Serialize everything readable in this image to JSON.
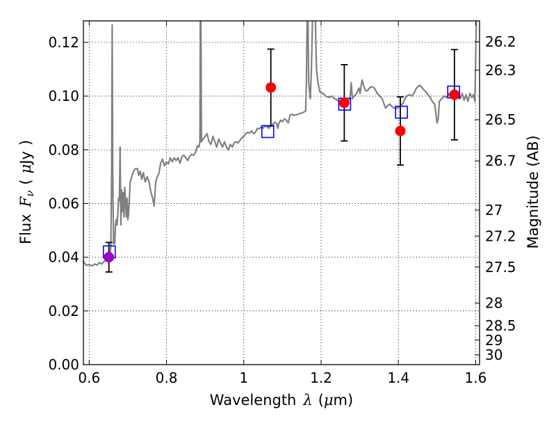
{
  "chart_data": {
    "type": "scatter",
    "xlabel": {
      "prefix": "Wavelength",
      "symbol": "λ",
      "unit_open": "(",
      "unit_mu": "μ",
      "unit_rest": "m)"
    },
    "ylabel": {
      "prefix": "Flux",
      "symbol": "F",
      "subscript": "ν",
      "unit_open": "(",
      "unit_mu": "μ",
      "unit_rest": "Jy",
      "unit_close": ")"
    },
    "y2label": "Magnitude (AB)",
    "xlim": [
      0.585,
      1.61
    ],
    "ylim": [
      0.0,
      0.128
    ],
    "grid": true,
    "x_ticks": [
      {
        "value": 0.6,
        "label": "0.6"
      },
      {
        "value": 0.8,
        "label": "0.8"
      },
      {
        "value": 1.0,
        "label": "1"
      },
      {
        "value": 1.2,
        "label": "1.2"
      },
      {
        "value": 1.4,
        "label": "1.4"
      },
      {
        "value": 1.6,
        "label": "1.6"
      }
    ],
    "y_ticks": [
      {
        "value": 0.0,
        "label": "0.00"
      },
      {
        "value": 0.02,
        "label": "0.02"
      },
      {
        "value": 0.04,
        "label": "0.04"
      },
      {
        "value": 0.06,
        "label": "0.06"
      },
      {
        "value": 0.08,
        "label": "0.08"
      },
      {
        "value": 0.1,
        "label": "0.10"
      },
      {
        "value": 0.12,
        "label": "0.12"
      }
    ],
    "mag_ticks": [
      {
        "value": 26.2,
        "label": "26.2"
      },
      {
        "value": 26.3,
        "label": "26.3"
      },
      {
        "value": 26.5,
        "label": "26.5"
      },
      {
        "value": 26.7,
        "label": "26.7"
      },
      {
        "value": 27.0,
        "label": "27"
      },
      {
        "value": 27.2,
        "label": "27.2"
      },
      {
        "value": 27.5,
        "label": "27.5"
      },
      {
        "value": 28.0,
        "label": "28"
      },
      {
        "value": 28.5,
        "label": "28.5"
      },
      {
        "value": 29.0,
        "label": "29"
      },
      {
        "value": 30.0,
        "label": "30"
      }
    ],
    "series": [
      {
        "name": "model-spectrum",
        "kind": "line",
        "color": "#808080",
        "points": [
          [
            0.585,
            0.0385
          ],
          [
            0.592,
            0.037
          ],
          [
            0.6,
            0.0372
          ],
          [
            0.608,
            0.0368
          ],
          [
            0.615,
            0.0375
          ],
          [
            0.62,
            0.037
          ],
          [
            0.626,
            0.038
          ],
          [
            0.632,
            0.0375
          ],
          [
            0.638,
            0.0383
          ],
          [
            0.643,
            0.039
          ],
          [
            0.648,
            0.0395
          ],
          [
            0.652,
            0.04
          ],
          [
            0.654,
            0.0408
          ],
          [
            0.656,
            0.044
          ],
          [
            0.658,
            0.07
          ],
          [
            0.6595,
            0.1265
          ],
          [
            0.661,
            0.07
          ],
          [
            0.663,
            0.045
          ],
          [
            0.666,
            0.045
          ],
          [
            0.668,
            0.052
          ],
          [
            0.67,
            0.054
          ],
          [
            0.672,
            0.052
          ],
          [
            0.674,
            0.056
          ],
          [
            0.676,
            0.062
          ],
          [
            0.678,
            0.061
          ],
          [
            0.68,
            0.081
          ],
          [
            0.682,
            0.052
          ],
          [
            0.684,
            0.065
          ],
          [
            0.686,
            0.057
          ],
          [
            0.688,
            0.064
          ],
          [
            0.69,
            0.055
          ],
          [
            0.692,
            0.066
          ],
          [
            0.694,
            0.061
          ],
          [
            0.696,
            0.055
          ],
          [
            0.698,
            0.062
          ],
          [
            0.7,
            0.054
          ],
          [
            0.702,
            0.056
          ],
          [
            0.706,
            0.068
          ],
          [
            0.71,
            0.07
          ],
          [
            0.715,
            0.0722
          ],
          [
            0.72,
            0.073
          ],
          [
            0.725,
            0.0729
          ],
          [
            0.728,
            0.0705
          ],
          [
            0.732,
            0.072
          ],
          [
            0.736,
            0.069
          ],
          [
            0.74,
            0.0715
          ],
          [
            0.745,
            0.068
          ],
          [
            0.75,
            0.07
          ],
          [
            0.755,
            0.068
          ],
          [
            0.76,
            0.064
          ],
          [
            0.764,
            0.062
          ],
          [
            0.768,
            0.059
          ],
          [
            0.772,
            0.068
          ],
          [
            0.776,
            0.07
          ],
          [
            0.78,
            0.071
          ],
          [
            0.785,
            0.075
          ],
          [
            0.79,
            0.0765
          ],
          [
            0.795,
            0.074
          ],
          [
            0.8,
            0.0755
          ],
          [
            0.805,
            0.0748
          ],
          [
            0.81,
            0.077
          ],
          [
            0.815,
            0.0755
          ],
          [
            0.82,
            0.077
          ],
          [
            0.825,
            0.076
          ],
          [
            0.83,
            0.077
          ],
          [
            0.835,
            0.075
          ],
          [
            0.84,
            0.0775
          ],
          [
            0.845,
            0.078
          ],
          [
            0.85,
            0.077
          ],
          [
            0.855,
            0.076
          ],
          [
            0.86,
            0.0775
          ],
          [
            0.865,
            0.0783
          ],
          [
            0.87,
            0.078
          ],
          [
            0.875,
            0.079
          ],
          [
            0.88,
            0.0815
          ],
          [
            0.884,
            0.081
          ],
          [
            0.8865,
            0.083
          ],
          [
            0.8875,
            0.13
          ],
          [
            0.889,
            0.13
          ],
          [
            0.8905,
            0.083
          ],
          [
            0.895,
            0.084
          ],
          [
            0.9,
            0.085
          ],
          [
            0.905,
            0.086
          ],
          [
            0.91,
            0.083
          ],
          [
            0.915,
            0.082
          ],
          [
            0.92,
            0.085
          ],
          [
            0.925,
            0.083
          ],
          [
            0.93,
            0.081
          ],
          [
            0.935,
            0.084
          ],
          [
            0.94,
            0.0825
          ],
          [
            0.945,
            0.081
          ],
          [
            0.95,
            0.083
          ],
          [
            0.955,
            0.081
          ],
          [
            0.96,
            0.08
          ],
          [
            0.965,
            0.082
          ],
          [
            0.97,
            0.081
          ],
          [
            0.975,
            0.0825
          ],
          [
            0.98,
            0.083
          ],
          [
            0.985,
            0.0825
          ],
          [
            0.99,
            0.0835
          ],
          [
            0.995,
            0.0845
          ],
          [
            1.0,
            0.085
          ],
          [
            1.005,
            0.086
          ],
          [
            1.01,
            0.0865
          ],
          [
            1.015,
            0.0862
          ],
          [
            1.02,
            0.087
          ],
          [
            1.025,
            0.086
          ],
          [
            1.03,
            0.0865
          ],
          [
            1.035,
            0.088
          ],
          [
            1.04,
            0.0878
          ],
          [
            1.045,
            0.0885
          ],
          [
            1.05,
            0.088
          ],
          [
            1.055,
            0.089
          ],
          [
            1.06,
            0.0885
          ],
          [
            1.065,
            0.088
          ],
          [
            1.07,
            0.089
          ],
          [
            1.075,
            0.0895
          ],
          [
            1.08,
            0.0902
          ],
          [
            1.085,
            0.0898
          ],
          [
            1.088,
            0.088
          ],
          [
            1.09,
            0.0895
          ],
          [
            1.095,
            0.091
          ],
          [
            1.1,
            0.0905
          ],
          [
            1.105,
            0.0915
          ],
          [
            1.11,
            0.091
          ],
          [
            1.115,
            0.09
          ],
          [
            1.12,
            0.093
          ],
          [
            1.125,
            0.0932
          ],
          [
            1.13,
            0.0928
          ],
          [
            1.135,
            0.093
          ],
          [
            1.14,
            0.0932
          ],
          [
            1.145,
            0.0935
          ],
          [
            1.15,
            0.0937
          ],
          [
            1.155,
            0.094
          ],
          [
            1.16,
            0.0945
          ],
          [
            1.162,
            0.105
          ],
          [
            1.164,
            0.13
          ],
          [
            1.166,
            0.13
          ],
          [
            1.168,
            0.105
          ],
          [
            1.172,
            0.099
          ],
          [
            1.175,
            0.11
          ],
          [
            1.178,
            0.13
          ],
          [
            1.18,
            0.13
          ],
          [
            1.182,
            0.13
          ],
          [
            1.185,
            0.13
          ],
          [
            1.188,
            0.11
          ],
          [
            1.192,
            0.105
          ],
          [
            1.197,
            0.1015
          ],
          [
            1.205,
            0.101
          ],
          [
            1.212,
            0.1
          ],
          [
            1.22,
            0.0995
          ],
          [
            1.228,
            0.1
          ],
          [
            1.235,
            0.099
          ],
          [
            1.242,
            0.0985
          ],
          [
            1.248,
            0.098
          ],
          [
            1.255,
            0.0975
          ],
          [
            1.262,
            0.098
          ],
          [
            1.268,
            0.0985
          ],
          [
            1.272,
            0.0985
          ],
          [
            1.275,
            0.099
          ],
          [
            1.278,
            0.105
          ],
          [
            1.281,
            0.099
          ],
          [
            1.285,
            0.1
          ],
          [
            1.29,
            0.1005
          ],
          [
            1.295,
            0.102
          ],
          [
            1.298,
            0.103
          ],
          [
            1.301,
            0.101
          ],
          [
            1.306,
            0.106
          ],
          [
            1.31,
            0.104
          ],
          [
            1.315,
            0.102
          ],
          [
            1.32,
            0.102
          ],
          [
            1.325,
            0.103
          ],
          [
            1.33,
            0.1035
          ],
          [
            1.338,
            0.103
          ],
          [
            1.345,
            0.101
          ],
          [
            1.352,
            0.1
          ],
          [
            1.358,
            0.099
          ],
          [
            1.363,
            0.097
          ],
          [
            1.367,
            0.0955
          ],
          [
            1.372,
            0.0965
          ],
          [
            1.378,
            0.097
          ],
          [
            1.384,
            0.096
          ],
          [
            1.39,
            0.0955
          ],
          [
            1.396,
            0.0955
          ],
          [
            1.402,
            0.096
          ],
          [
            1.407,
            0.0965
          ],
          [
            1.412,
            0.0975
          ],
          [
            1.417,
            0.099
          ],
          [
            1.422,
            0.1
          ],
          [
            1.428,
            0.1005
          ],
          [
            1.434,
            0.1
          ],
          [
            1.44,
            0.101
          ],
          [
            1.445,
            0.1025
          ],
          [
            1.45,
            0.1035
          ],
          [
            1.456,
            0.104
          ],
          [
            1.462,
            0.103
          ],
          [
            1.468,
            0.102
          ],
          [
            1.474,
            0.101
          ],
          [
            1.48,
            0.1
          ],
          [
            1.486,
            0.0985
          ],
          [
            1.49,
            0.0975
          ],
          [
            1.494,
            0.097
          ],
          [
            1.497,
            0.0935
          ],
          [
            1.5,
            0.09
          ],
          [
            1.503,
            0.0915
          ],
          [
            1.506,
            0.098
          ],
          [
            1.512,
            0.099
          ],
          [
            1.518,
            0.1
          ],
          [
            1.525,
            0.0995
          ],
          [
            1.532,
            0.101
          ],
          [
            1.54,
            0.1005
          ],
          [
            1.548,
            0.1
          ],
          [
            1.555,
            0.0995
          ],
          [
            1.56,
            0.099
          ],
          [
            1.565,
            0.101
          ],
          [
            1.57,
            0.0985
          ],
          [
            1.575,
            0.1005
          ],
          [
            1.58,
            0.098
          ],
          [
            1.585,
            0.101
          ],
          [
            1.59,
            0.0995
          ],
          [
            1.594,
            0.1005
          ],
          [
            1.598,
            0.098
          ],
          [
            1.6,
            0.115
          ],
          [
            1.602,
            0.13
          ],
          [
            1.605,
            0.13
          ]
        ]
      },
      {
        "name": "observed-flux",
        "kind": "errorbar",
        "marker": "circle",
        "color": "#ff0000",
        "ecolor": "#000000",
        "points": [
          {
            "x": 1.07,
            "y": 0.1032,
            "yerr": 0.0143
          },
          {
            "x": 1.26,
            "y": 0.0975,
            "yerr": 0.0142
          },
          {
            "x": 1.405,
            "y": 0.087,
            "yerr": 0.0127
          },
          {
            "x": 1.545,
            "y": 0.1005,
            "yerr": 0.0168
          }
        ]
      },
      {
        "name": "observed-flux-blue-band",
        "kind": "errorbar",
        "marker": "circle",
        "color": "#a000c8",
        "ecolor": "#000000",
        "points": [
          {
            "x": 0.651,
            "y": 0.04,
            "yerr": 0.0055
          }
        ]
      },
      {
        "name": "model-band-flux",
        "kind": "scatter",
        "marker": "square-open",
        "color": "#0000ff",
        "points": [
          {
            "x": 0.652,
            "y": 0.042
          },
          {
            "x": 1.062,
            "y": 0.0868
          },
          {
            "x": 1.261,
            "y": 0.097
          },
          {
            "x": 1.408,
            "y": 0.094
          },
          {
            "x": 1.543,
            "y": 0.1015
          }
        ]
      }
    ]
  }
}
